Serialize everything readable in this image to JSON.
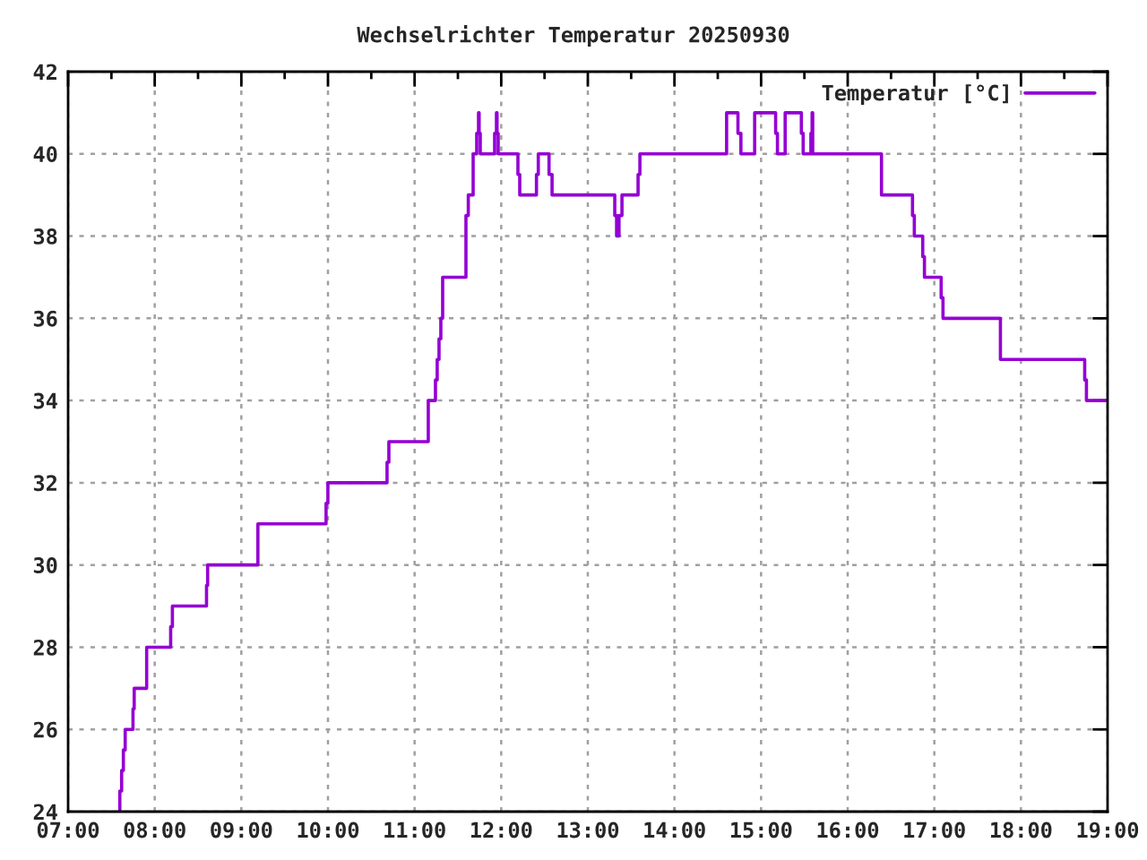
{
  "chart_data": {
    "type": "step",
    "title": "Wechselrichter Temperatur 20250930",
    "x": [
      7.59,
      7.597,
      7.618,
      7.638,
      7.659,
      7.749,
      7.763,
      7.907,
      8.184,
      8.204,
      8.598,
      8.611,
      9.191,
      9.978,
      9.999,
      10.682,
      10.703,
      11.158,
      11.241,
      11.261,
      11.282,
      11.303,
      11.324,
      11.593,
      11.62,
      11.676,
      11.717,
      11.738,
      11.745,
      11.758,
      11.924,
      11.945,
      11.952,
      11.965,
      12.193,
      12.214,
      12.407,
      12.428,
      12.552,
      12.587,
      13.311,
      13.332,
      13.36,
      13.394,
      13.58,
      13.601,
      14.602,
      14.733,
      14.767,
      14.926,
      15.168,
      15.189,
      15.278,
      15.465,
      15.486,
      15.575,
      15.589,
      15.596,
      16.39,
      16.748,
      16.769,
      16.866,
      16.886,
      17.079,
      17.1,
      17.763,
      18.736,
      18.756,
      19.0
    ],
    "series": [
      {
        "name": "Temperatur [°C]",
        "color": "#9400d3",
        "values": [
          24,
          24.5,
          25,
          25.5,
          26,
          26.5,
          27,
          28,
          28.5,
          29,
          29.5,
          30,
          31,
          31.5,
          32,
          32.5,
          33,
          34,
          34.5,
          35,
          35.5,
          36,
          37,
          38.5,
          39,
          40,
          40.5,
          41,
          40.5,
          40,
          40.5,
          41,
          40.5,
          40,
          39.5,
          39,
          39.5,
          40,
          39.5,
          39,
          38.5,
          38,
          38.5,
          39,
          39.5,
          40,
          41,
          40.5,
          40,
          41,
          40.5,
          40,
          41,
          40.5,
          40,
          40.5,
          41,
          40,
          39,
          38.5,
          38,
          37.5,
          37,
          36.5,
          36,
          35,
          34.5,
          34,
          34
        ]
      }
    ],
    "xlim": [
      7,
      19
    ],
    "xticks": [
      {
        "value": 7,
        "label": "07:00"
      },
      {
        "value": 7.5,
        "label": null
      },
      {
        "value": 8,
        "label": "08:00"
      },
      {
        "value": 8.5,
        "label": null
      },
      {
        "value": 9,
        "label": "09:00"
      },
      {
        "value": 9.5,
        "label": null
      },
      {
        "value": 10,
        "label": "10:00"
      },
      {
        "value": 10.5,
        "label": null
      },
      {
        "value": 11,
        "label": "11:00"
      },
      {
        "value": 11.5,
        "label": null
      },
      {
        "value": 12,
        "label": "12:00"
      },
      {
        "value": 12.5,
        "label": null
      },
      {
        "value": 13,
        "label": "13:00"
      },
      {
        "value": 13.5,
        "label": null
      },
      {
        "value": 14,
        "label": "14:00"
      },
      {
        "value": 14.5,
        "label": null
      },
      {
        "value": 15,
        "label": "15:00"
      },
      {
        "value": 15.5,
        "label": null
      },
      {
        "value": 16,
        "label": "16:00"
      },
      {
        "value": 16.5,
        "label": null
      },
      {
        "value": 17,
        "label": "17:00"
      },
      {
        "value": 17.5,
        "label": null
      },
      {
        "value": 18,
        "label": "18:00"
      },
      {
        "value": 18.5,
        "label": null
      },
      {
        "value": 19,
        "label": "19:00"
      }
    ],
    "ylim": [
      24,
      42
    ],
    "yticks": [
      24,
      26,
      28,
      30,
      32,
      34,
      36,
      38,
      40,
      42
    ],
    "grid": true,
    "legend": "top right",
    "line_style": "solid"
  }
}
